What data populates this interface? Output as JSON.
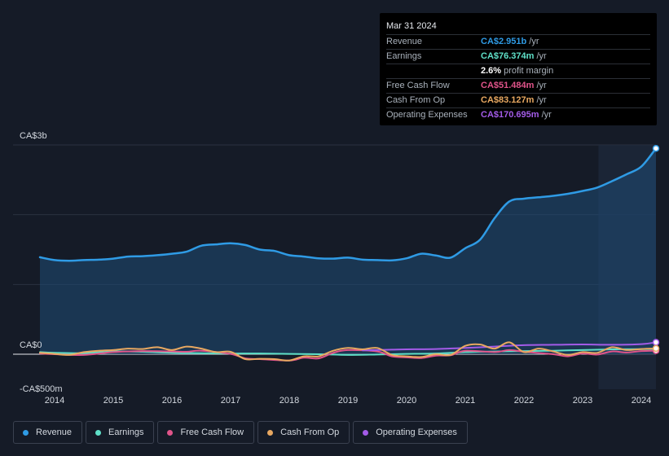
{
  "colors": {
    "background": "#151b27",
    "revenue": "#2f9be5",
    "earnings": "#5fe0c8",
    "free_cash_flow": "#e0548a",
    "cash_from_op": "#e8a861",
    "operating_expenses": "#a35be8",
    "forecast_band": "#1d2a3c"
  },
  "tooltip": {
    "date": "Mar 31 2024",
    "rows": [
      {
        "label": "Revenue",
        "value": "CA$2.951b",
        "unit": "/yr",
        "color": "#2f9be5"
      },
      {
        "label": "Earnings",
        "value": "CA$76.374m",
        "unit": "/yr",
        "color": "#5fe0c8"
      },
      {
        "label": "",
        "value": "2.6%",
        "unit": "profit margin",
        "color": "#ffffff"
      },
      {
        "label": "Free Cash Flow",
        "value": "CA$51.484m",
        "unit": "/yr",
        "color": "#e0548a"
      },
      {
        "label": "Cash From Op",
        "value": "CA$83.127m",
        "unit": "/yr",
        "color": "#e8a861"
      },
      {
        "label": "Operating Expenses",
        "value": "CA$170.695m",
        "unit": "/yr",
        "color": "#a35be8"
      }
    ]
  },
  "legend": [
    {
      "label": "Revenue",
      "color": "#2f9be5"
    },
    {
      "label": "Earnings",
      "color": "#5fe0c8"
    },
    {
      "label": "Free Cash Flow",
      "color": "#e0548a"
    },
    {
      "label": "Cash From Op",
      "color": "#e8a861"
    },
    {
      "label": "Operating Expenses",
      "color": "#a35be8"
    }
  ],
  "chart_data": {
    "type": "line",
    "title": "",
    "xlabel": "",
    "ylabel": "",
    "ylim": [
      -500,
      3000
    ],
    "y_unit": "CA$m",
    "y_tick_labels": [
      {
        "value": 3000,
        "label": "CA$3b"
      },
      {
        "value": 0,
        "label": "CA$0"
      },
      {
        "value": -500,
        "label": "-CA$500m"
      }
    ],
    "x_ticks": [
      2014,
      2015,
      2016,
      2017,
      2018,
      2019,
      2020,
      2021,
      2022,
      2023,
      2024
    ],
    "xlim": [
      2013.55,
      2024.45
    ],
    "forecast_region_start": 2023.27,
    "series": [
      {
        "name": "Revenue",
        "color": "#2f9be5",
        "filled": true,
        "points": [
          [
            2013.75,
            1390
          ],
          [
            2014.0,
            1350
          ],
          [
            2014.25,
            1340
          ],
          [
            2014.5,
            1350
          ],
          [
            2014.75,
            1355
          ],
          [
            2015.0,
            1370
          ],
          [
            2015.25,
            1400
          ],
          [
            2015.5,
            1405
          ],
          [
            2015.75,
            1420
          ],
          [
            2016.0,
            1440
          ],
          [
            2016.25,
            1470
          ],
          [
            2016.5,
            1555
          ],
          [
            2016.75,
            1575
          ],
          [
            2017.0,
            1590
          ],
          [
            2017.25,
            1565
          ],
          [
            2017.5,
            1500
          ],
          [
            2017.75,
            1480
          ],
          [
            2018.0,
            1420
          ],
          [
            2018.25,
            1400
          ],
          [
            2018.5,
            1375
          ],
          [
            2018.75,
            1370
          ],
          [
            2019.0,
            1385
          ],
          [
            2019.25,
            1355
          ],
          [
            2019.5,
            1350
          ],
          [
            2019.75,
            1345
          ],
          [
            2020.0,
            1375
          ],
          [
            2020.25,
            1440
          ],
          [
            2020.5,
            1415
          ],
          [
            2020.75,
            1385
          ],
          [
            2021.0,
            1520
          ],
          [
            2021.25,
            1640
          ],
          [
            2021.5,
            1950
          ],
          [
            2021.75,
            2190
          ],
          [
            2022.0,
            2230
          ],
          [
            2022.25,
            2250
          ],
          [
            2022.5,
            2270
          ],
          [
            2022.75,
            2300
          ],
          [
            2023.0,
            2340
          ],
          [
            2023.25,
            2390
          ],
          [
            2023.5,
            2480
          ],
          [
            2023.75,
            2580
          ],
          [
            2024.0,
            2690
          ],
          [
            2024.25,
            2951
          ]
        ]
      },
      {
        "name": "Earnings",
        "color": "#5fe0c8",
        "filled": false,
        "points": [
          [
            2013.75,
            30
          ],
          [
            2014.0,
            20
          ],
          [
            2014.5,
            15
          ],
          [
            2015.0,
            40
          ],
          [
            2015.5,
            35
          ],
          [
            2016.0,
            20
          ],
          [
            2016.5,
            15
          ],
          [
            2017.0,
            10
          ],
          [
            2017.5,
            10
          ],
          [
            2018.0,
            5
          ],
          [
            2018.5,
            0
          ],
          [
            2019.0,
            -10
          ],
          [
            2019.5,
            -5
          ],
          [
            2020.0,
            5
          ],
          [
            2020.5,
            10
          ],
          [
            2021.0,
            30
          ],
          [
            2021.5,
            40
          ],
          [
            2022.0,
            45
          ],
          [
            2022.5,
            50
          ],
          [
            2023.0,
            60
          ],
          [
            2023.5,
            70
          ],
          [
            2024.0,
            72
          ],
          [
            2024.25,
            76.374
          ]
        ]
      },
      {
        "name": "Free Cash Flow",
        "color": "#e0548a",
        "filled": false,
        "points": [
          [
            2013.75,
            10
          ],
          [
            2014.0,
            0
          ],
          [
            2014.5,
            -10
          ],
          [
            2015.0,
            30
          ],
          [
            2015.5,
            45
          ],
          [
            2016.0,
            40
          ],
          [
            2016.25,
            35
          ],
          [
            2016.5,
            50
          ],
          [
            2017.0,
            5
          ],
          [
            2017.25,
            -60
          ],
          [
            2017.5,
            -70
          ],
          [
            2018.0,
            -90
          ],
          [
            2018.25,
            -50
          ],
          [
            2018.5,
            -60
          ],
          [
            2018.75,
            20
          ],
          [
            2019.0,
            60
          ],
          [
            2019.5,
            40
          ],
          [
            2019.75,
            -30
          ],
          [
            2020.0,
            -45
          ],
          [
            2020.25,
            -55
          ],
          [
            2020.5,
            -20
          ],
          [
            2020.75,
            -15
          ],
          [
            2021.0,
            50
          ],
          [
            2021.5,
            30
          ],
          [
            2021.75,
            60
          ],
          [
            2022.0,
            35
          ],
          [
            2022.5,
            0
          ],
          [
            2022.75,
            -30
          ],
          [
            2023.0,
            10
          ],
          [
            2023.25,
            -5
          ],
          [
            2023.5,
            40
          ],
          [
            2023.75,
            25
          ],
          [
            2024.0,
            45
          ],
          [
            2024.25,
            51.484
          ]
        ]
      },
      {
        "name": "Cash From Op",
        "color": "#e8a861",
        "filled": false,
        "points": [
          [
            2013.75,
            20
          ],
          [
            2014.0,
            5
          ],
          [
            2014.25,
            -10
          ],
          [
            2014.5,
            30
          ],
          [
            2014.75,
            50
          ],
          [
            2015.0,
            60
          ],
          [
            2015.25,
            80
          ],
          [
            2015.5,
            75
          ],
          [
            2015.75,
            100
          ],
          [
            2016.0,
            60
          ],
          [
            2016.25,
            110
          ],
          [
            2016.5,
            80
          ],
          [
            2016.75,
            30
          ],
          [
            2017.0,
            35
          ],
          [
            2017.25,
            -70
          ],
          [
            2017.5,
            -65
          ],
          [
            2017.75,
            -70
          ],
          [
            2018.0,
            -90
          ],
          [
            2018.25,
            -30
          ],
          [
            2018.5,
            -30
          ],
          [
            2018.75,
            50
          ],
          [
            2019.0,
            90
          ],
          [
            2019.25,
            70
          ],
          [
            2019.5,
            90
          ],
          [
            2019.75,
            -10
          ],
          [
            2020.0,
            -30
          ],
          [
            2020.25,
            -40
          ],
          [
            2020.5,
            0
          ],
          [
            2020.75,
            -10
          ],
          [
            2021.0,
            120
          ],
          [
            2021.25,
            140
          ],
          [
            2021.5,
            80
          ],
          [
            2021.75,
            170
          ],
          [
            2022.0,
            30
          ],
          [
            2022.25,
            80
          ],
          [
            2022.5,
            40
          ],
          [
            2022.75,
            -10
          ],
          [
            2023.0,
            30
          ],
          [
            2023.25,
            20
          ],
          [
            2023.5,
            100
          ],
          [
            2023.75,
            60
          ],
          [
            2024.0,
            75
          ],
          [
            2024.25,
            83.127
          ]
        ]
      },
      {
        "name": "Operating Expenses",
        "color": "#a35be8",
        "filled": false,
        "points": [
          [
            2019.25,
            55
          ],
          [
            2019.5,
            60
          ],
          [
            2019.75,
            65
          ],
          [
            2020.0,
            70
          ],
          [
            2020.5,
            75
          ],
          [
            2021.0,
            90
          ],
          [
            2021.5,
            110
          ],
          [
            2022.0,
            130
          ],
          [
            2022.5,
            135
          ],
          [
            2023.0,
            140
          ],
          [
            2023.5,
            135
          ],
          [
            2024.0,
            145
          ],
          [
            2024.25,
            170.695
          ]
        ]
      }
    ]
  }
}
